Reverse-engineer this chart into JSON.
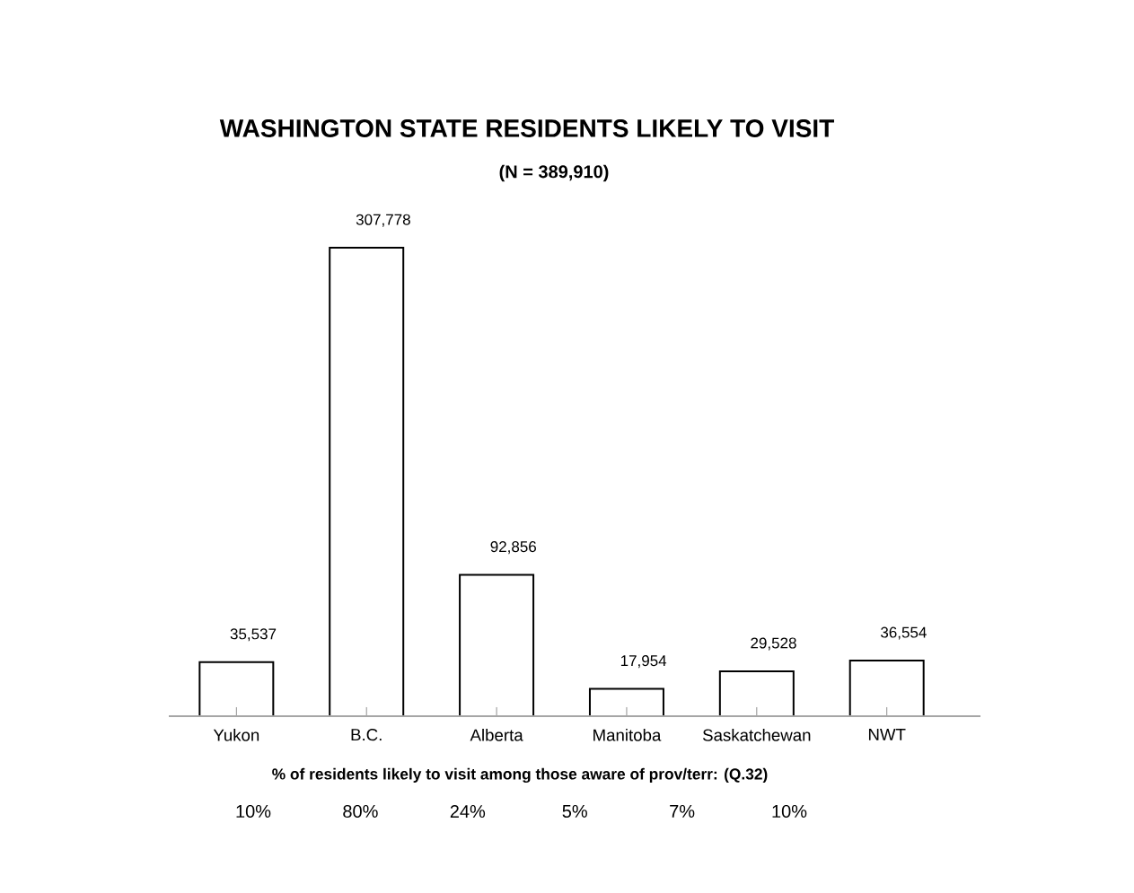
{
  "chart_data": {
    "type": "bar",
    "title": "WASHINGTON STATE RESIDENTS LIKELY TO VISIT",
    "subtitle": "(N = 389,910)",
    "xlabel": "% of residents likely to visit among those aware of prov/terr: (Q.32)",
    "categories": [
      "Yukon",
      "B.C.",
      "Alberta",
      "Manitoba",
      "Saskatchewan",
      "NWT"
    ],
    "values": [
      35537,
      307778,
      92856,
      17954,
      29528,
      36554
    ],
    "value_labels": [
      "35,537",
      "307,778",
      "92,856",
      "17,954",
      "29,528",
      "36,554"
    ],
    "color": "#ffffff",
    "annotations": [
      "10%",
      "80%",
      "24%",
      "5%",
      "7%",
      "10%"
    ]
  }
}
